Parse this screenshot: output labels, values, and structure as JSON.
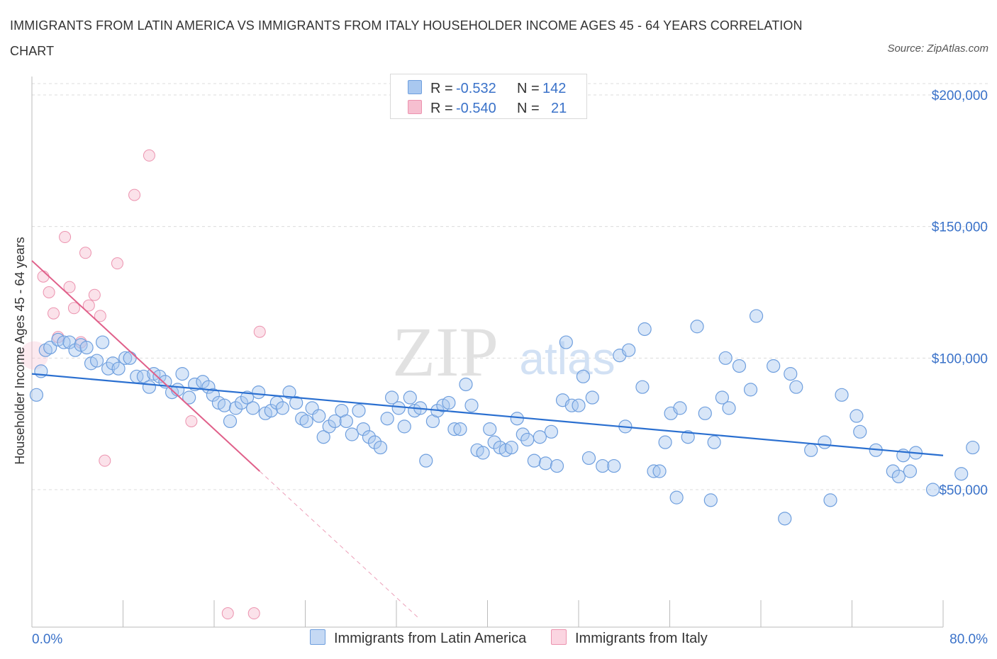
{
  "title": "IMMIGRANTS FROM LATIN AMERICA VS IMMIGRANTS FROM ITALY HOUSEHOLDER INCOME AGES 45 - 64 YEARS CORRELATION CHART",
  "source": "Source: ZipAtlas.com",
  "watermark": {
    "zip": "ZIP",
    "atlas": "atlas"
  },
  "legend": {
    "rows": [
      {
        "r_label": "R =",
        "r_value": "-0.532",
        "n_label": "N =",
        "n_value": "142"
      },
      {
        "r_label": "R =",
        "r_value": "-0.540",
        "n_label": "N =",
        "n_value": "21"
      }
    ]
  },
  "colors": {
    "blue_fill": "#a9c8f0",
    "blue_stroke": "#6f9fde",
    "blue_line": "#2a6fd0",
    "pink_fill": "#f6bfd0",
    "pink_stroke": "#ec93af",
    "pink_line": "#e0608a",
    "tick_text": "#3a72c9",
    "grid": "#dcdcdc"
  },
  "chart_data": {
    "type": "scatter",
    "title": "IMMIGRANTS FROM LATIN AMERICA VS IMMIGRANTS FROM ITALY HOUSEHOLDER INCOME AGES 45 - 64 YEARS CORRELATION CHART",
    "xlabel": "",
    "ylabel": "Householder Income Ages 45 - 64 years",
    "x_tick_labels": [
      "0.0%",
      "80.0%"
    ],
    "y_tick_labels": [
      "$50,000",
      "$100,000",
      "$150,000",
      "$200,000"
    ],
    "y_ticks": [
      50000,
      100000,
      150000,
      200000
    ],
    "xlim": [
      0,
      80
    ],
    "ylim": [
      0,
      200000
    ],
    "grid": true,
    "legend_position": "top-center",
    "series": [
      {
        "name": "Immigrants from Latin America",
        "r": -0.532,
        "n": 142,
        "trend": {
          "x0": 0,
          "y0": 94000,
          "x1": 80,
          "y1": 63000
        },
        "points": [
          [
            0.4,
            86000
          ],
          [
            0.8,
            95000
          ],
          [
            1.2,
            103000
          ],
          [
            1.6,
            104000
          ],
          [
            2.3,
            107000
          ],
          [
            2.8,
            106000
          ],
          [
            3.3,
            106000
          ],
          [
            3.8,
            103000
          ],
          [
            4.3,
            105000
          ],
          [
            4.8,
            104000
          ],
          [
            5.2,
            98000
          ],
          [
            5.7,
            99000
          ],
          [
            6.2,
            106000
          ],
          [
            6.7,
            96000
          ],
          [
            7.1,
            98000
          ],
          [
            7.6,
            96000
          ],
          [
            8.2,
            100000
          ],
          [
            8.6,
            100000
          ],
          [
            9.2,
            93000
          ],
          [
            9.8,
            93000
          ],
          [
            10.3,
            89000
          ],
          [
            10.7,
            94000
          ],
          [
            11.2,
            93000
          ],
          [
            11.7,
            91000
          ],
          [
            12.3,
            87000
          ],
          [
            12.8,
            88000
          ],
          [
            13.2,
            94000
          ],
          [
            13.8,
            85000
          ],
          [
            14.3,
            90000
          ],
          [
            15.0,
            91000
          ],
          [
            15.5,
            89000
          ],
          [
            15.9,
            86000
          ],
          [
            16.4,
            83000
          ],
          [
            16.9,
            82000
          ],
          [
            17.4,
            76000
          ],
          [
            17.9,
            81000
          ],
          [
            18.4,
            83000
          ],
          [
            18.9,
            85000
          ],
          [
            19.4,
            81000
          ],
          [
            19.9,
            87000
          ],
          [
            20.5,
            79000
          ],
          [
            21.0,
            80000
          ],
          [
            21.5,
            83000
          ],
          [
            22.0,
            81000
          ],
          [
            22.6,
            87000
          ],
          [
            23.2,
            83000
          ],
          [
            23.7,
            77000
          ],
          [
            24.1,
            76000
          ],
          [
            24.6,
            81000
          ],
          [
            25.2,
            78000
          ],
          [
            25.6,
            70000
          ],
          [
            26.1,
            74000
          ],
          [
            26.6,
            76000
          ],
          [
            27.2,
            80000
          ],
          [
            27.6,
            76000
          ],
          [
            28.1,
            71000
          ],
          [
            28.7,
            80000
          ],
          [
            29.1,
            73000
          ],
          [
            29.6,
            70000
          ],
          [
            30.1,
            68000
          ],
          [
            30.6,
            66000
          ],
          [
            31.2,
            77000
          ],
          [
            31.6,
            85000
          ],
          [
            32.2,
            81000
          ],
          [
            32.7,
            74000
          ],
          [
            33.2,
            85000
          ],
          [
            33.6,
            80000
          ],
          [
            34.1,
            81000
          ],
          [
            34.6,
            61000
          ],
          [
            35.2,
            76000
          ],
          [
            35.6,
            80000
          ],
          [
            36.1,
            82000
          ],
          [
            36.6,
            83000
          ],
          [
            37.1,
            73000
          ],
          [
            37.6,
            73000
          ],
          [
            38.1,
            90000
          ],
          [
            38.6,
            82000
          ],
          [
            39.1,
            65000
          ],
          [
            39.6,
            64000
          ],
          [
            40.2,
            73000
          ],
          [
            40.6,
            68000
          ],
          [
            41.1,
            66000
          ],
          [
            41.6,
            65000
          ],
          [
            42.1,
            66000
          ],
          [
            42.6,
            77000
          ],
          [
            43.1,
            71000
          ],
          [
            43.5,
            69000
          ],
          [
            44.1,
            61000
          ],
          [
            44.6,
            70000
          ],
          [
            45.1,
            60000
          ],
          [
            45.6,
            72000
          ],
          [
            46.1,
            59000
          ],
          [
            46.6,
            84000
          ],
          [
            46.9,
            106000
          ],
          [
            47.4,
            82000
          ],
          [
            48.0,
            82000
          ],
          [
            48.4,
            93000
          ],
          [
            48.9,
            62000
          ],
          [
            49.2,
            85000
          ],
          [
            50.1,
            59000
          ],
          [
            51.1,
            59000
          ],
          [
            51.6,
            101000
          ],
          [
            52.1,
            74000
          ],
          [
            52.4,
            103000
          ],
          [
            53.6,
            89000
          ],
          [
            53.8,
            111000
          ],
          [
            54.6,
            57000
          ],
          [
            55.1,
            57000
          ],
          [
            55.6,
            68000
          ],
          [
            56.1,
            79000
          ],
          [
            56.9,
            81000
          ],
          [
            56.6,
            47000
          ],
          [
            57.6,
            70000
          ],
          [
            58.4,
            112000
          ],
          [
            59.1,
            79000
          ],
          [
            59.6,
            46000
          ],
          [
            59.9,
            68000
          ],
          [
            60.6,
            85000
          ],
          [
            61.2,
            81000
          ],
          [
            60.9,
            100000
          ],
          [
            62.1,
            97000
          ],
          [
            63.1,
            88000
          ],
          [
            63.6,
            116000
          ],
          [
            65.1,
            97000
          ],
          [
            66.6,
            94000
          ],
          [
            67.1,
            89000
          ],
          [
            66.1,
            39000
          ],
          [
            68.4,
            65000
          ],
          [
            69.6,
            68000
          ],
          [
            70.1,
            46000
          ],
          [
            71.1,
            86000
          ],
          [
            72.4,
            78000
          ],
          [
            72.7,
            72000
          ],
          [
            74.1,
            65000
          ],
          [
            75.6,
            57000
          ],
          [
            76.1,
            55000
          ],
          [
            76.5,
            63000
          ],
          [
            77.1,
            57000
          ],
          [
            77.6,
            64000
          ],
          [
            79.1,
            50000
          ],
          [
            81.6,
            56000
          ],
          [
            82.6,
            66000
          ]
        ]
      },
      {
        "name": "Immigrants from Italy",
        "r": -0.54,
        "n": 21,
        "trend": {
          "x0": 0,
          "y0": 137000,
          "x1": 20,
          "y1": 57000
        },
        "trend_extended": {
          "x0": 20,
          "y0": 57000,
          "x1": 34,
          "y1": 1000
        },
        "points": [
          [
            0.4,
            101000
          ],
          [
            1.0,
            131000
          ],
          [
            1.5,
            125000
          ],
          [
            1.9,
            117000
          ],
          [
            2.3,
            108000
          ],
          [
            2.9,
            146000
          ],
          [
            3.3,
            127000
          ],
          [
            3.7,
            119000
          ],
          [
            4.3,
            106000
          ],
          [
            4.7,
            140000
          ],
          [
            5.0,
            120000
          ],
          [
            5.5,
            124000
          ],
          [
            6.0,
            116000
          ],
          [
            6.4,
            61000
          ],
          [
            7.5,
            136000
          ],
          [
            9.0,
            162000
          ],
          [
            10.3,
            177000
          ],
          [
            14.0,
            76000
          ],
          [
            17.2,
            3000
          ],
          [
            19.5,
            3000
          ],
          [
            20.0,
            110000
          ]
        ]
      }
    ]
  },
  "bottom_legend": {
    "items": [
      {
        "label": "Immigrants from Latin America"
      },
      {
        "label": "Immigrants from Italy"
      }
    ]
  }
}
